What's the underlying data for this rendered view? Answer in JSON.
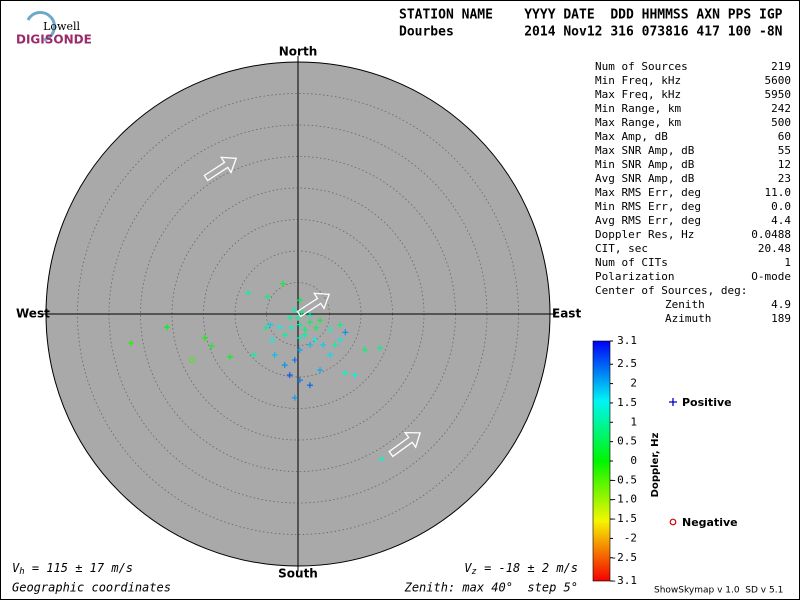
{
  "logo": {
    "top": "Lowell",
    "bottom": "DIGISONDE"
  },
  "header": {
    "labels": "STATION NAME    YYYY DATE  DDD HHMMSS AXN PPS IGP",
    "values": "Dourbes         2014 Nov12 316 073816 417 100 -8N"
  },
  "stats": [
    [
      "Num of Sources",
      "219"
    ],
    [
      "Min Freq, kHz",
      "5600"
    ],
    [
      "Max Freq, kHz",
      "5950"
    ],
    [
      "Min Range, km",
      "242"
    ],
    [
      "Max Range, km",
      "500"
    ],
    [
      "Max Amp, dB",
      "60"
    ],
    [
      "Max SNR Amp, dB",
      "55"
    ],
    [
      "Min SNR Amp, dB",
      "12"
    ],
    [
      "Avg SNR Amp, dB",
      "23"
    ],
    [
      "Max RMS Err, deg",
      "11.0"
    ],
    [
      "Min RMS Err, deg",
      "0.0"
    ],
    [
      "Avg RMS Err, deg",
      "4.4"
    ],
    [
      "Doppler Res, Hz",
      "0.0488"
    ],
    [
      "CIT, sec",
      "20.48"
    ],
    [
      "Num of CITs",
      "1"
    ],
    [
      "Polarization",
      "O-mode"
    ]
  ],
  "center": {
    "title": "Center of Sources, deg:",
    "rows": [
      [
        "Zenith",
        "4.9"
      ],
      [
        "Azimuth",
        "189"
      ]
    ]
  },
  "footer": {
    "vh": {
      "symbol": "V",
      "sub": "h",
      "text": " = 115 ± 17 m/s"
    },
    "vz": {
      "symbol": "V",
      "sub": "z",
      "text": " = -18 ± 2 m/s"
    },
    "coords": "Geographic coordinates",
    "zenith": "Zenith: max 40°  step 5°",
    "version": "ShowSkymap v 1.0  SD v 5.1"
  },
  "chart_data": {
    "type": "skymap",
    "directions": {
      "north": "North",
      "south": "South",
      "east": "East",
      "west": "West"
    },
    "rlim": [
      0,
      40
    ],
    "rticks": [
      5,
      10,
      15,
      20,
      25,
      30,
      35,
      40
    ],
    "series": [
      {
        "name": "Positive",
        "color": "#0000c8",
        "x": [
          -2.4,
          -7.9,
          -4.8,
          0.3,
          -0.6,
          -1.3,
          -4.4,
          -2.9,
          0.3,
          1.9,
          3.5,
          5.1,
          7.5,
          6.7,
          1.9,
          0.3,
          -0.5,
          -1.3,
          0.3,
          -0.5,
          1.9,
          3.5,
          5.1,
          7.5,
          9.0,
          13.0,
          10.6,
          13.3,
          -26.5,
          -20.8,
          -14.8,
          -13.7,
          -10.8,
          -4.1,
          -5.1,
          -7.0,
          -3.7,
          -2.1,
          1.1,
          2.7,
          4.0,
          5.9,
          6.7,
          1.1,
          0.3,
          0.0,
          -1.0,
          -2.1,
          0.6,
          1.9,
          2.9
        ],
        "y": [
          4.8,
          3.3,
          2.7,
          2.2,
          0.6,
          -0.6,
          -1.7,
          -2.1,
          -1.7,
          -1.3,
          -1.0,
          -2.5,
          -2.9,
          -4.1,
          -4.9,
          -5.7,
          -7.3,
          -9.7,
          -10.5,
          -13.3,
          -11.3,
          -8.9,
          -6.5,
          -9.4,
          -9.7,
          -5.4,
          -5.7,
          -23.0,
          -4.6,
          -2.1,
          -3.8,
          -5.1,
          -6.8,
          -4.1,
          -2.2,
          -6.5,
          -6.5,
          -8.1,
          -3.3,
          -4.1,
          -4.9,
          -4.9,
          -1.7,
          -2.5,
          -3.8,
          -0.6,
          -2.2,
          -3.3,
          0.3,
          -0.2,
          -2.2
        ],
        "doppler": [
          0.3,
          1.0,
          0.8,
          0.5,
          1.2,
          1.0,
          1.8,
          1.5,
          1.1,
          0.6,
          0.4,
          1.3,
          2.2,
          1.6,
          1.9,
          2.0,
          2.4,
          2.6,
          2.3,
          2.1,
          2.5,
          2.0,
          1.7,
          1.2,
          1.4,
          0.9,
          0.7,
          1.3,
          -0.2,
          0.1,
          -0.1,
          0.3,
          0.2,
          1.4,
          0.9,
          1.1,
          1.9,
          2.2,
          1.0,
          1.5,
          1.8,
          1.0,
          0.8,
          0.7,
          1.2,
          0.9,
          1.3,
          1.0,
          0.8,
          1.1,
          0.6
        ]
      },
      {
        "name": "Negative",
        "color": "#d00000",
        "x": [
          -16.8
        ],
        "y": [
          -7.3
        ],
        "doppler": [
          -0.4
        ]
      }
    ],
    "colorbar": {
      "label": "Doppler, Hz",
      "lim": [
        -3.1,
        3.1
      ],
      "ticks": [
        3.1,
        2.5,
        2,
        1.5,
        1,
        0.5,
        0,
        -0.5,
        {
          "value": -1,
          "label": "-1.0"
        },
        -1.5,
        -2,
        -2.5,
        -3.1
      ]
    }
  }
}
